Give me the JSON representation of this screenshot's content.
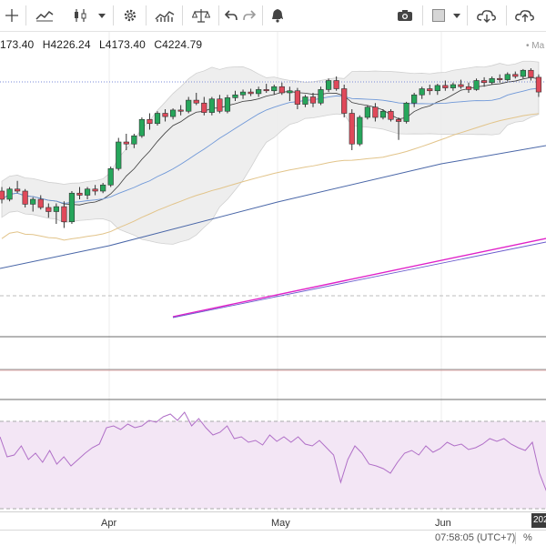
{
  "ohlc": {
    "open": "173.40",
    "high": "H4226.24",
    "low": "L4173.40",
    "close": "C4224.79"
  },
  "ma_label": "• Ma",
  "time_axis": [
    "Apr",
    "May",
    "Jun"
  ],
  "status": {
    "clock": "07:58:05 (UTC+7)",
    "percent": "%",
    "date_tag": "202"
  },
  "colors": {
    "up": "#26a65b",
    "down": "#e0495a",
    "rsi_fill": "#f3e6f5",
    "rsi_line": "#b06fc7",
    "bb_fill": "#ececec"
  },
  "toolbar": {
    "icons": [
      "crosshair-icon",
      "line-chart-icon",
      "candlestick-icon",
      "settings-icon",
      "indicators-icon",
      "compare-icon",
      "undo-icon",
      "redo-icon",
      "alert-icon",
      "camera-icon",
      "color-square-icon",
      "cloud-download-icon",
      "cloud-upload-icon"
    ]
  },
  "chart_data": {
    "type": "candlestick",
    "candles": [
      [
        4150,
        4160,
        4120,
        4130
      ],
      [
        4130,
        4160,
        4125,
        4155
      ],
      [
        4155,
        4175,
        4145,
        4150
      ],
      [
        4150,
        4155,
        4110,
        4118
      ],
      [
        4118,
        4135,
        4100,
        4130
      ],
      [
        4130,
        4140,
        4105,
        4110
      ],
      [
        4110,
        4120,
        4085,
        4100
      ],
      [
        4100,
        4120,
        4070,
        4112
      ],
      [
        4112,
        4125,
        4060,
        4075
      ],
      [
        4075,
        4150,
        4070,
        4145
      ],
      [
        4145,
        4160,
        4130,
        4140
      ],
      [
        4140,
        4160,
        4130,
        4155
      ],
      [
        4155,
        4165,
        4140,
        4150
      ],
      [
        4150,
        4170,
        4145,
        4165
      ],
      [
        4165,
        4210,
        4160,
        4205
      ],
      [
        4205,
        4280,
        4200,
        4270
      ],
      [
        4270,
        4290,
        4250,
        4265
      ],
      [
        4265,
        4290,
        4255,
        4285
      ],
      [
        4285,
        4330,
        4280,
        4325
      ],
      [
        4325,
        4340,
        4300,
        4315
      ],
      [
        4315,
        4345,
        4310,
        4340
      ],
      [
        4340,
        4350,
        4320,
        4332
      ],
      [
        4332,
        4352,
        4325,
        4348
      ],
      [
        4348,
        4360,
        4335,
        4345
      ],
      [
        4345,
        4380,
        4340,
        4372
      ],
      [
        4372,
        4390,
        4360,
        4365
      ],
      [
        4365,
        4380,
        4335,
        4342
      ],
      [
        4342,
        4380,
        4335,
        4375
      ],
      [
        4375,
        4385,
        4340,
        4345
      ],
      [
        4345,
        4385,
        4340,
        4378
      ],
      [
        4378,
        4395,
        4370,
        4385
      ],
      [
        4385,
        4398,
        4375,
        4392
      ],
      [
        4392,
        4400,
        4382,
        4388
      ],
      [
        4388,
        4405,
        4380,
        4398
      ],
      [
        4398,
        4412,
        4390,
        4395
      ],
      [
        4395,
        4410,
        4385,
        4405
      ],
      [
        4405,
        4415,
        4385,
        4390
      ],
      [
        4390,
        4405,
        4370,
        4395
      ],
      [
        4395,
        4402,
        4350,
        4362
      ],
      [
        4362,
        4385,
        4355,
        4380
      ],
      [
        4380,
        4390,
        4355,
        4365
      ],
      [
        4365,
        4405,
        4360,
        4398
      ],
      [
        4398,
        4425,
        4392,
        4420
      ],
      [
        4420,
        4430,
        4395,
        4400
      ],
      [
        4400,
        4410,
        4330,
        4340
      ],
      [
        4340,
        4350,
        4250,
        4265
      ],
      [
        4265,
        4335,
        4260,
        4330
      ],
      [
        4330,
        4360,
        4325,
        4355
      ],
      [
        4355,
        4365,
        4320,
        4330
      ],
      [
        4330,
        4350,
        4325,
        4345
      ],
      [
        4345,
        4350,
        4320,
        4325
      ],
      [
        4325,
        4330,
        4275,
        4320
      ],
      [
        4320,
        4368,
        4315,
        4365
      ],
      [
        4365,
        4390,
        4355,
        4385
      ],
      [
        4385,
        4405,
        4375,
        4400
      ],
      [
        4400,
        4410,
        4385,
        4395
      ],
      [
        4395,
        4412,
        4385,
        4408
      ],
      [
        4408,
        4420,
        4395,
        4402
      ],
      [
        4402,
        4415,
        4395,
        4410
      ],
      [
        4410,
        4422,
        4400,
        4405
      ],
      [
        4405,
        4415,
        4390,
        4398
      ],
      [
        4398,
        4425,
        4395,
        4420
      ],
      [
        4420,
        4428,
        4405,
        4415
      ],
      [
        4415,
        4430,
        4410,
        4425
      ],
      [
        4425,
        4435,
        4415,
        4422
      ],
      [
        4422,
        4440,
        4418,
        4435
      ],
      [
        4435,
        4442,
        4425,
        4430
      ],
      [
        4430,
        4448,
        4425,
        4445
      ],
      [
        4445,
        4450,
        4420,
        4428
      ],
      [
        4428,
        4435,
        4380,
        4392
      ]
    ]
  }
}
